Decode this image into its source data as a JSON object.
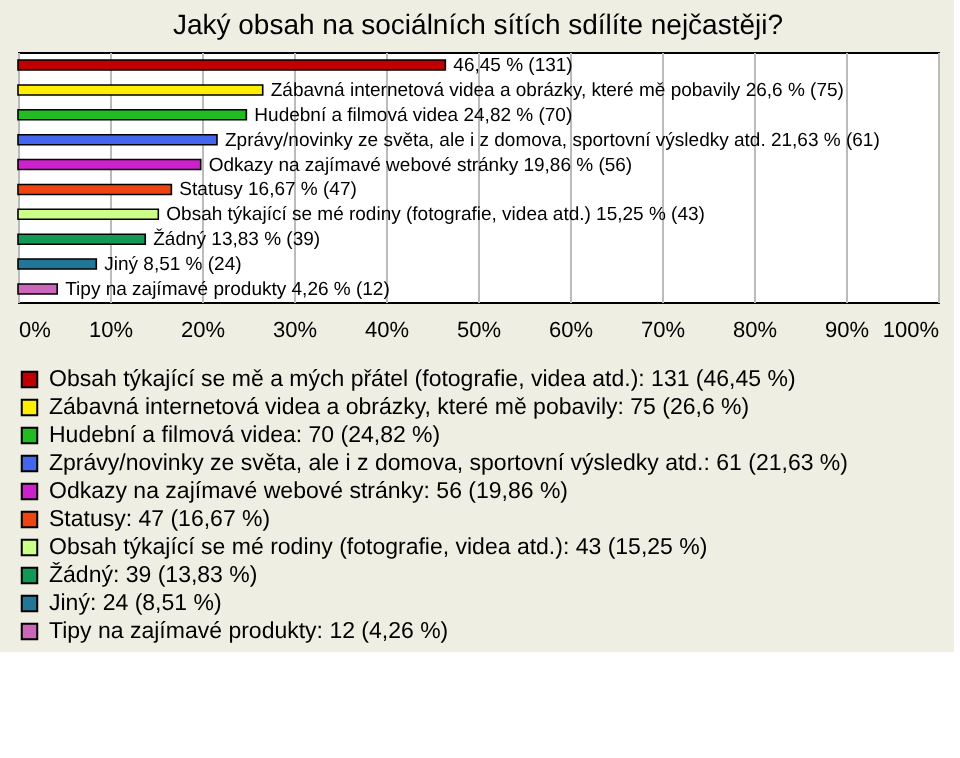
{
  "chart_data": {
    "type": "bar",
    "orientation": "horizontal",
    "stacked": true,
    "title": "Jaký obsah na sociálních sítích sdílíte nejčastěji?",
    "categories": [
      null,
      null,
      null,
      null,
      null,
      null,
      null,
      null,
      null,
      null
    ],
    "series": [
      {
        "name": "Obsah týkající se mě a mých přátel (fotografie, videa atd.): 131 (46,45 %)",
        "color": "#c00000",
        "values": [
          46.45,
          null,
          null,
          null,
          null,
          null,
          null,
          null,
          null,
          null
        ],
        "value_labels": [
          "46,45 % (131)",
          null,
          null,
          null,
          null,
          null,
          null,
          null,
          null,
          null
        ]
      },
      {
        "name": "Zábavná internetová videa a obrázky, které mě pobavily: 75 (26,6 %)",
        "color": "#ffee00",
        "values": [
          null,
          26.6,
          null,
          null,
          null,
          null,
          null,
          null,
          null,
          null
        ],
        "value_labels": [
          null,
          "Zábavná internetová videa a obrázky, které mě pobavily 26,6 % (75)",
          null,
          null,
          null,
          null,
          null,
          null,
          null,
          null
        ]
      },
      {
        "name": "Hudební a filmová videa: 70 (24,82 %)",
        "color": "#22bb22",
        "values": [
          null,
          null,
          24.82,
          null,
          null,
          null,
          null,
          null,
          null,
          null
        ],
        "value_labels": [
          null,
          null,
          "Hudební a filmová videa 24,82 % (70)",
          null,
          null,
          null,
          null,
          null,
          null,
          null
        ]
      },
      {
        "name": "Zprávy/novinky ze světa, ale i z domova, sportovní výsledky atd.: 61 (21,63 %)",
        "color": "#4466ee",
        "values": [
          null,
          null,
          null,
          21.63,
          null,
          null,
          null,
          null,
          null,
          null
        ],
        "value_labels": [
          null,
          null,
          null,
          "Zprávy/novinky ze světa, ale i z domova, sportovní výsledky atd. 21,63 % (61)",
          null,
          null,
          null,
          null,
          null,
          null
        ]
      },
      {
        "name": "Odkazy na zajímavé webové stránky: 56 (19,86 %)",
        "color": "#cc22cc",
        "values": [
          null,
          null,
          null,
          null,
          19.86,
          null,
          null,
          null,
          null,
          null
        ],
        "value_labels": [
          null,
          null,
          null,
          null,
          "Odkazy na zajímavé webové stránky 19,86 % (56)",
          null,
          null,
          null,
          null,
          null
        ]
      },
      {
        "name": "Statusy: 47 (16,67 %)",
        "color": "#ee4411",
        "values": [
          null,
          null,
          null,
          null,
          null,
          16.67,
          null,
          null,
          null,
          null
        ],
        "value_labels": [
          null,
          null,
          null,
          null,
          null,
          "Statusy 16,67 % (47)",
          null,
          null,
          null,
          null
        ]
      },
      {
        "name": "Obsah týkající se mé rodiny (fotografie, videa atd.): 43 (15,25 %)",
        "color": "#ccff88",
        "values": [
          null,
          null,
          null,
          null,
          null,
          null,
          15.25,
          null,
          null,
          null
        ],
        "value_labels": [
          null,
          null,
          null,
          null,
          null,
          null,
          "Obsah týkající se mé rodiny (fotografie, videa atd.) 15,25 % (43)",
          null,
          null,
          null
        ]
      },
      {
        "name": "Žádný: 39 (13,83 %)",
        "color": "#119955",
        "values": [
          null,
          null,
          null,
          null,
          null,
          null,
          null,
          13.83,
          null,
          null
        ],
        "value_labels": [
          null,
          null,
          null,
          null,
          null,
          null,
          null,
          "Žádný 13,83 % (39)",
          null,
          null
        ]
      },
      {
        "name": "Jiný: 24 (8,51 %)",
        "color": "#227799",
        "values": [
          null,
          null,
          null,
          null,
          null,
          null,
          null,
          null,
          8.51,
          null
        ],
        "value_labels": [
          null,
          null,
          null,
          null,
          null,
          null,
          null,
          null,
          "Jiný 8,51 % (24)",
          null
        ]
      },
      {
        "name": "Tipy na zajímavé produkty: 12 (4,26 %)",
        "color": "#cc66bb",
        "values": [
          null,
          null,
          null,
          null,
          null,
          null,
          null,
          null,
          null,
          4.26
        ],
        "value_labels": [
          null,
          null,
          null,
          null,
          null,
          null,
          null,
          null,
          null,
          "Tipy na zajímavé produkty 4,26 % (12)"
        ]
      }
    ],
    "xlim": [
      0,
      100
    ],
    "xticks": [
      {
        "value": 0,
        "label": "0%"
      },
      {
        "value": 10,
        "label": "10%"
      },
      {
        "value": 20,
        "label": "20%"
      },
      {
        "value": 30,
        "label": "30%"
      },
      {
        "value": 40,
        "label": "40%"
      },
      {
        "value": 50,
        "label": "50%"
      },
      {
        "value": 60,
        "label": "60%"
      },
      {
        "value": 70,
        "label": "70%"
      },
      {
        "value": 80,
        "label": "80%"
      },
      {
        "value": 90,
        "label": "90%"
      },
      {
        "value": 100,
        "label": "100%"
      }
    ],
    "grid": "x",
    "legend": "bottom",
    "tick_labels": "x"
  }
}
